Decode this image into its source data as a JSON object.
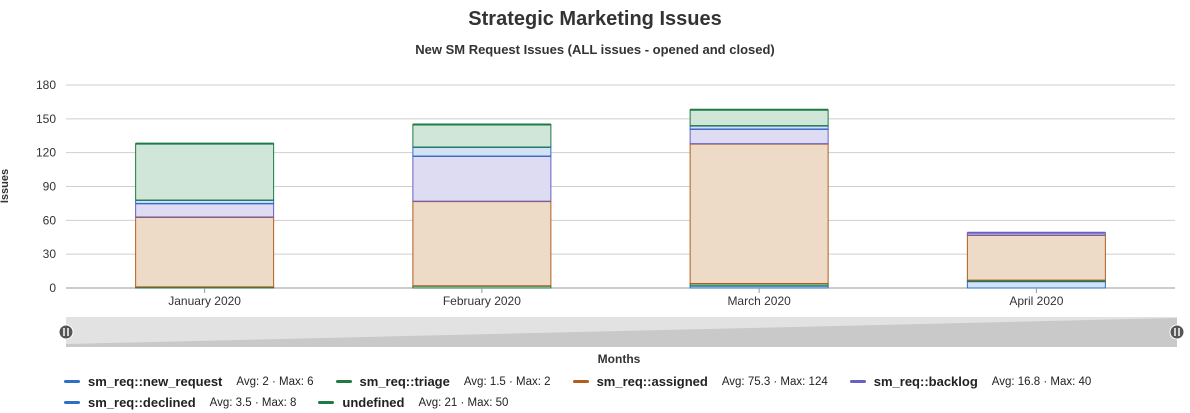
{
  "title": "Strategic Marketing Issues",
  "subtitle": "New SM Request Issues (ALL issues - opened and closed)",
  "chart_data": {
    "type": "bar",
    "stacked": true,
    "title": "Strategic Marketing Issues",
    "subtitle": "New SM Request Issues (ALL issues - opened and closed)",
    "xlabel": "Months",
    "ylabel": "Issues",
    "ylim": [
      0,
      180
    ],
    "yticks": [
      0,
      30,
      60,
      90,
      120,
      150,
      180
    ],
    "grid": true,
    "legend_position": "bottom",
    "categories": [
      "January 2020",
      "February 2020",
      "March 2020",
      "April 2020"
    ],
    "series": [
      {
        "name": "sm_req::new_request",
        "color": "#2e6fc2",
        "fill": "#d2e3f5",
        "values": [
          0,
          0,
          2,
          6
        ]
      },
      {
        "name": "sm_req::triage",
        "color": "#1f7a43",
        "fill": "#cfe6d8",
        "values": [
          1,
          2,
          2,
          1
        ]
      },
      {
        "name": "sm_req::assigned",
        "color": "#b35c1e",
        "fill": "#eddac7",
        "values": [
          62,
          75,
          124,
          40
        ]
      },
      {
        "name": "sm_req::backlog",
        "color": "#6a5fc4",
        "fill": "#dddcf3",
        "values": [
          12,
          40,
          13,
          2
        ]
      },
      {
        "name": "sm_req::declined",
        "color": "#2e6fc2",
        "fill": "#d2e3f5",
        "values": [
          3,
          8,
          3,
          0
        ]
      },
      {
        "name": "undefined",
        "color": "#1f7a43",
        "fill": "#cfe6d8",
        "values": [
          50,
          20,
          14,
          0
        ]
      }
    ]
  },
  "legend": [
    {
      "name": "sm_req::new_request",
      "stats": "Avg: 2 · Max: 6",
      "color": "#2e6fc2"
    },
    {
      "name": "sm_req::triage",
      "stats": "Avg: 1.5 · Max: 2",
      "color": "#1f7a43"
    },
    {
      "name": "sm_req::assigned",
      "stats": "Avg: 75.3 · Max: 124",
      "color": "#b35c1e"
    },
    {
      "name": "sm_req::backlog",
      "stats": "Avg: 16.8 · Max: 40",
      "color": "#6a5fc4"
    },
    {
      "name": "sm_req::declined",
      "stats": "Avg: 3.5 · Max: 8",
      "color": "#2e6fc2"
    },
    {
      "name": "undefined",
      "stats": "Avg: 21 · Max: 50",
      "color": "#1f7a43"
    }
  ]
}
